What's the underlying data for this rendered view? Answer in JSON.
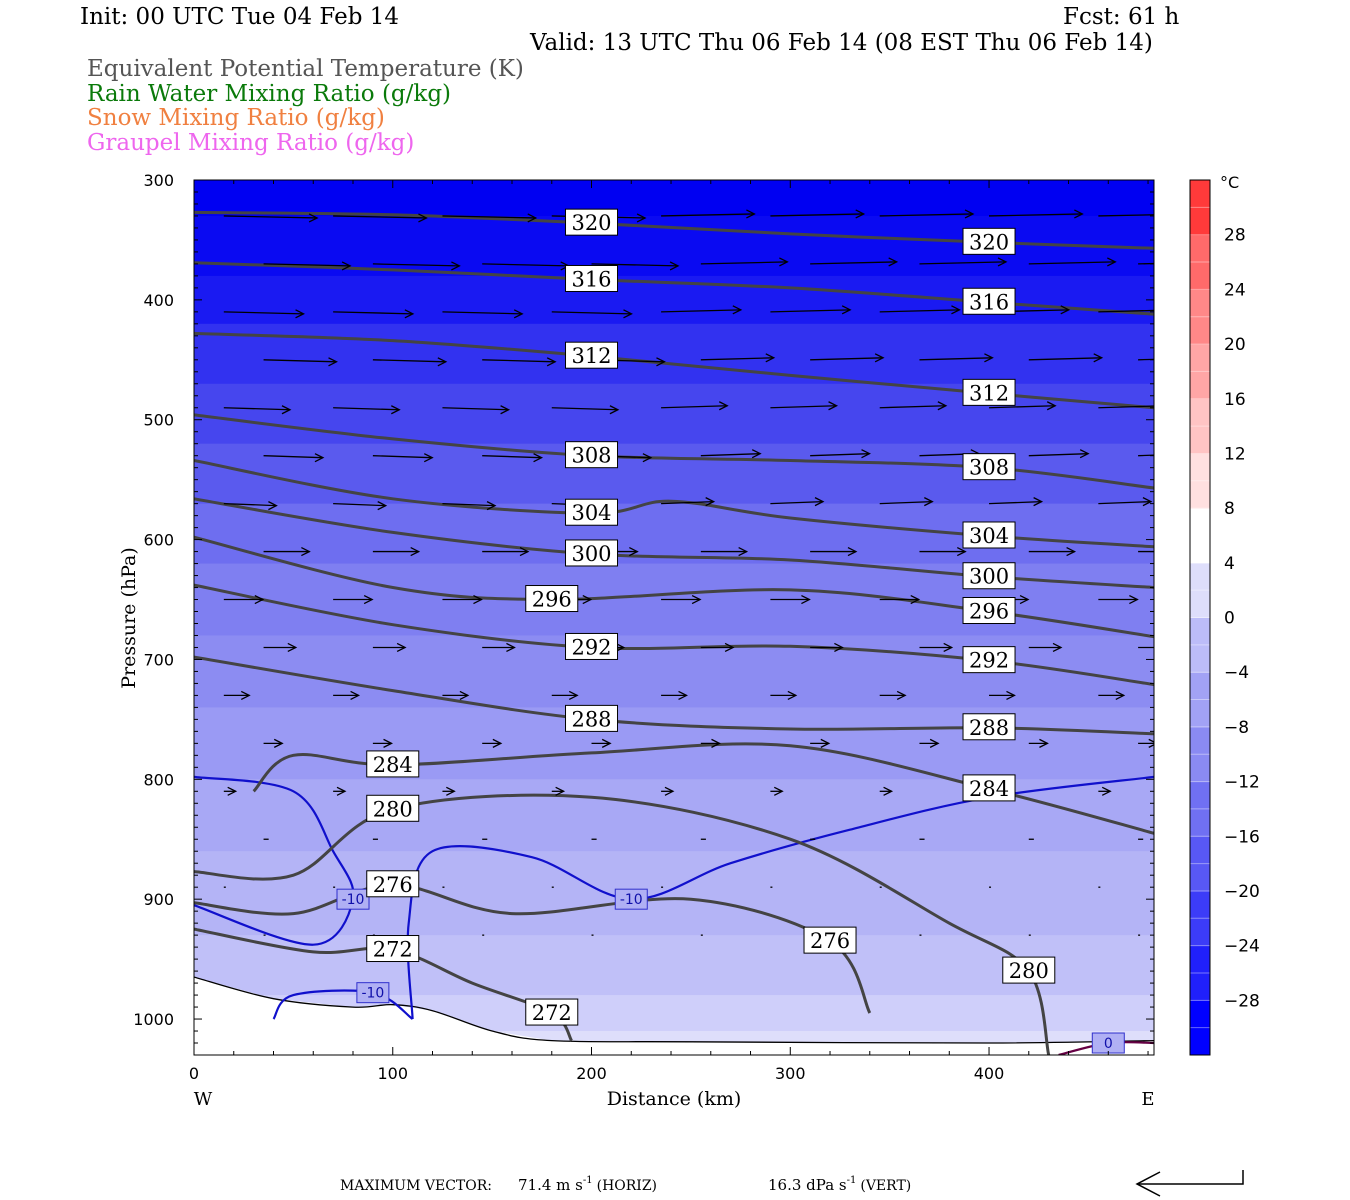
{
  "header": {
    "init": "Init: 00 UTC Tue 04 Feb 14",
    "fcst": "Fcst:   61 h",
    "valid": "Valid: 13 UTC Thu 06 Feb 14 (08 EST Thu 06 Feb 14)"
  },
  "legend": [
    {
      "text": "Equivalent Potential Temperature (K)",
      "color": "#555555"
    },
    {
      "text": "Rain Water Mixing Ratio (g/kg)",
      "color": "#0a7a0a"
    },
    {
      "text": "Snow Mixing Ratio (g/kg)",
      "color": "#f08040"
    },
    {
      "text": "Graupel Mixing Ratio (g/kg)",
      "color": "#ee66ee"
    }
  ],
  "footer": {
    "label": "MAXIMUM VECTOR:",
    "horiz": "71.4 m s",
    "horiz_tag": "(HORIZ)",
    "vert": "16.3 dPa s",
    "vert_tag": "(VERT)",
    "exp": "-1"
  },
  "chart_data": {
    "type": "contour",
    "xlabel": "Distance (km)",
    "ylabel": "Pressure (hPa)",
    "xlim": [
      0,
      483
    ],
    "ylim": [
      1030,
      300
    ],
    "y_scale": "linear, inverted",
    "x_ticks": [
      0,
      100,
      200,
      300,
      400
    ],
    "y_ticks": [
      300,
      400,
      500,
      600,
      700,
      800,
      900,
      1000
    ],
    "x_end_labels": {
      "left": "W",
      "right": "E"
    },
    "colorbar": {
      "unit": "°C",
      "ticks": [
        28,
        24,
        20,
        16,
        12,
        8,
        4,
        0,
        -4,
        -8,
        -12,
        -16,
        -20,
        -24,
        -28
      ],
      "range": [
        -32,
        32
      ],
      "colors": [
        "#0000ff",
        "#1414fd",
        "#2828fb",
        "#3c3cf9",
        "#5050f7",
        "#6464f5",
        "#7878f3",
        "#8c8cf3",
        "#a0a0f4",
        "#b4b4f6",
        "#c8c8f8",
        "#dcdcfa",
        "#f0f0fc",
        "#ffffff",
        "#ffeaea",
        "#ffd4d4",
        "#ffbcbc",
        "#ffa4a4",
        "#ff8c8c",
        "#ff7474",
        "#ff5c5c",
        "#ff4444",
        "#ff2c2c",
        "#ff1414"
      ]
    },
    "theta_e_contours": [
      {
        "label": "320",
        "points": [
          [
            0,
            327
          ],
          [
            100,
            329
          ],
          [
            200,
            336
          ],
          [
            300,
            345
          ],
          [
            400,
            352
          ],
          [
            483,
            357
          ]
        ]
      },
      {
        "label": "316",
        "points": [
          [
            0,
            369
          ],
          [
            100,
            375
          ],
          [
            200,
            383
          ],
          [
            300,
            390
          ],
          [
            400,
            402
          ],
          [
            483,
            412
          ]
        ]
      },
      {
        "label": "312",
        "points": [
          [
            0,
            428
          ],
          [
            100,
            434
          ],
          [
            200,
            447
          ],
          [
            300,
            463
          ],
          [
            400,
            478
          ],
          [
            483,
            490
          ]
        ]
      },
      {
        "label": "308",
        "points": [
          [
            0,
            496
          ],
          [
            100,
            516
          ],
          [
            200,
            530
          ],
          [
            300,
            534
          ],
          [
            400,
            540
          ],
          [
            483,
            557
          ]
        ]
      },
      {
        "label": "304",
        "points": [
          [
            0,
            534
          ],
          [
            100,
            566
          ],
          [
            200,
            578
          ],
          [
            240,
            568
          ],
          [
            300,
            582
          ],
          [
            400,
            597
          ],
          [
            483,
            606
          ]
        ]
      },
      {
        "label": "300",
        "points": [
          [
            0,
            566
          ],
          [
            100,
            594
          ],
          [
            200,
            612
          ],
          [
            300,
            617
          ],
          [
            400,
            631
          ],
          [
            483,
            640
          ]
        ]
      },
      {
        "label": "296",
        "points": [
          [
            0,
            598
          ],
          [
            100,
            640
          ],
          [
            180,
            650
          ],
          [
            300,
            642
          ],
          [
            400,
            660
          ],
          [
            483,
            681
          ]
        ]
      },
      {
        "label": "292",
        "points": [
          [
            0,
            638
          ],
          [
            100,
            671
          ],
          [
            200,
            690
          ],
          [
            300,
            689
          ],
          [
            400,
            701
          ],
          [
            483,
            721
          ]
        ]
      },
      {
        "label": "288",
        "points": [
          [
            0,
            698
          ],
          [
            100,
            726
          ],
          [
            200,
            750
          ],
          [
            300,
            758
          ],
          [
            400,
            757
          ],
          [
            483,
            762
          ]
        ]
      },
      {
        "label": "284",
        "points": [
          [
            30,
            810
          ],
          [
            50,
            780
          ],
          [
            100,
            788
          ],
          [
            200,
            778
          ],
          [
            300,
            772
          ],
          [
            400,
            808
          ],
          [
            483,
            845
          ]
        ]
      },
      {
        "label": "280",
        "points": [
          [
            0,
            877
          ],
          [
            50,
            880
          ],
          [
            100,
            825
          ],
          [
            200,
            815
          ],
          [
            300,
            850
          ],
          [
            380,
            920
          ],
          [
            420,
            960
          ],
          [
            430,
            1030
          ]
        ]
      },
      {
        "label": "276",
        "points": [
          [
            0,
            903
          ],
          [
            50,
            912
          ],
          [
            100,
            888
          ],
          [
            160,
            912
          ],
          [
            250,
            900
          ],
          [
            320,
            935
          ],
          [
            340,
            995
          ]
        ]
      },
      {
        "label": "272",
        "points": [
          [
            0,
            925
          ],
          [
            60,
            944
          ],
          [
            100,
            942
          ],
          [
            140,
            970
          ],
          [
            180,
            995
          ],
          [
            190,
            1018
          ]
        ]
      }
    ],
    "temperature_contours": [
      {
        "label": "-10",
        "points": [
          [
            0,
            798
          ],
          [
            50,
            810
          ],
          [
            70,
            860
          ],
          [
            80,
            900
          ],
          [
            60,
            938
          ],
          [
            0,
            905
          ]
        ]
      },
      {
        "label": "-10",
        "points": [
          [
            40,
            1000
          ],
          [
            50,
            980
          ],
          [
            90,
            978
          ],
          [
            110,
            1000
          ]
        ]
      },
      {
        "label": "-10",
        "points": [
          [
            110,
            1000
          ],
          [
            108,
            920
          ],
          [
            120,
            860
          ],
          [
            170,
            865
          ],
          [
            220,
            900
          ],
          [
            270,
            870
          ],
          [
            330,
            842
          ],
          [
            400,
            815
          ],
          [
            483,
            798
          ]
        ]
      },
      {
        "label": "0",
        "points": [
          [
            435,
            1030
          ],
          [
            460,
            1020
          ],
          [
            483,
            1020
          ]
        ]
      }
    ],
    "wind_vectors": "horizontal wind arrows pointing east, longest aloft (~300-500 hPa), decreasing to near zero below 850 hPa"
  }
}
